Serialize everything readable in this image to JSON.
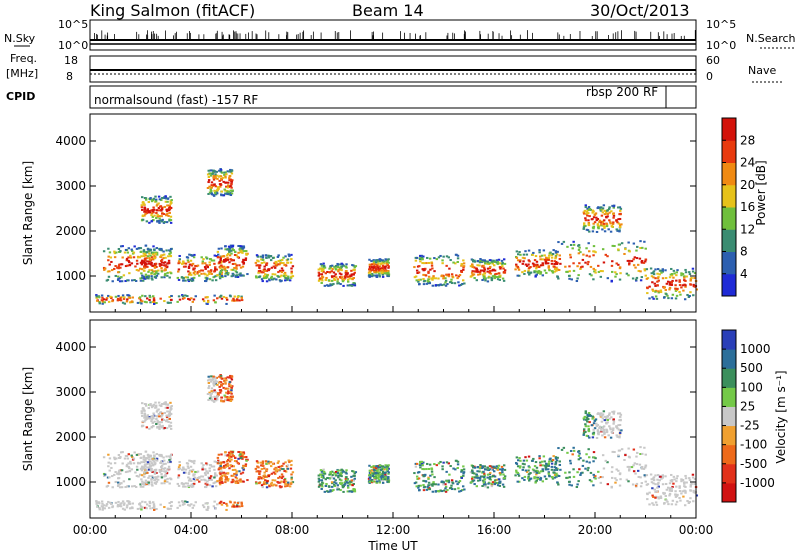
{
  "header": {
    "station": "King Salmon (fitACF)",
    "beam": "Beam 14",
    "date": "30/Oct/2013"
  },
  "params": {
    "nsky_label": "N.Sky",
    "nsearch_label": "N.Search",
    "freq_label_1": "Freq.",
    "freq_label_2": "[MHz]",
    "nave_label": "Nave",
    "cpid_label": "CPID",
    "nsky_ticks": [
      "10^5",
      "10^0"
    ],
    "nsearch_ticks": [
      "10^5",
      "10^0"
    ],
    "freq_ticks": [
      "18",
      "8"
    ],
    "nave_ticks": [
      "60",
      "0"
    ],
    "cpid_left": "normalsound (fast) -157 RF",
    "cpid_right": "rbsp 200 RF"
  },
  "chart_data": [
    {
      "type": "heatmap",
      "name": "power-panel",
      "ylabel": "Slant Range [km]",
      "xlim": [
        0,
        24
      ],
      "ylim": [
        200,
        4600
      ],
      "yticks": [
        "1000",
        "2000",
        "3000",
        "4000"
      ],
      "colorbar": {
        "label": "Power [dB]",
        "ticks": [
          "4",
          "8",
          "12",
          "16",
          "20",
          "24",
          "28"
        ],
        "colors": [
          "#1f2bd6",
          "#2c5fb0",
          "#3a8c72",
          "#6fbf3c",
          "#e6c21a",
          "#f08a12",
          "#e83a0e",
          "#d3120a"
        ]
      }
    },
    {
      "type": "heatmap",
      "name": "velocity-panel",
      "ylabel": "Slant Range [km]",
      "xlim": [
        0,
        24
      ],
      "ylim": [
        200,
        4600
      ],
      "yticks": [
        "1000",
        "2000",
        "3000",
        "4000"
      ],
      "xticks": [
        "00:00",
        "04:00",
        "08:00",
        "12:00",
        "16:00",
        "20:00",
        "00:00"
      ],
      "xlabel": "Time UT",
      "colorbar": {
        "label": "Velocity [m s⁻¹]",
        "ticks": [
          "1000",
          "500",
          "100",
          "25",
          "-25",
          "-100",
          "-500",
          "-1000"
        ],
        "colors": [
          "#2a3fb8",
          "#2c6f9a",
          "#3b8f5c",
          "#74c948",
          "#c8c8c8",
          "#f0a030",
          "#ee6a1a",
          "#e2311a",
          "#d11212"
        ]
      }
    }
  ]
}
